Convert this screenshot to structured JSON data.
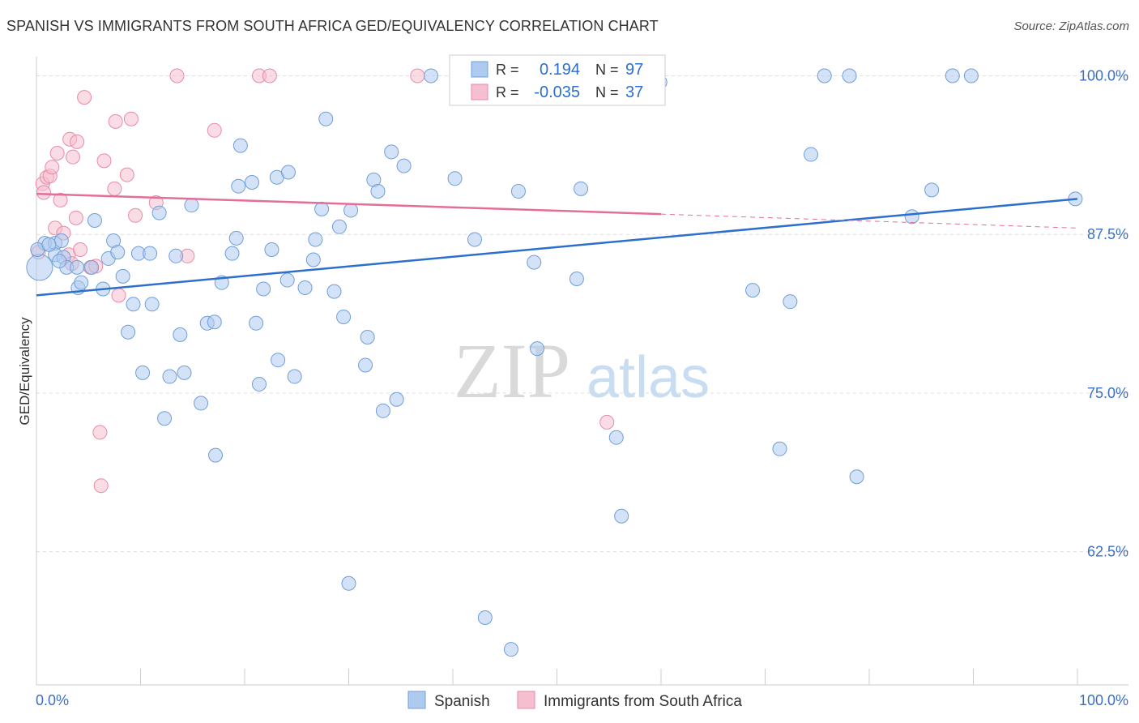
{
  "title": "SPANISH VS IMMIGRANTS FROM SOUTH AFRICA GED/EQUIVALENCY CORRELATION CHART",
  "source": "Source: ZipAtlas.com",
  "watermark": {
    "zip": "ZIP",
    "atlas": "atlas"
  },
  "colors": {
    "spanish_fill": "#aecbef",
    "spanish_stroke": "#6f9fd8",
    "spanish_line": "#2d6fcc",
    "sa_fill": "#f6bfd0",
    "sa_stroke": "#e88aaa",
    "sa_line": "#e36f98",
    "axis_text": "#3b6fc4",
    "grid": "#dddddd"
  },
  "legend_top": {
    "rows": [
      {
        "r_label": "R =",
        "r_value": "0.194",
        "n_label": "N =",
        "n_value": "97"
      },
      {
        "r_label": "R =",
        "r_value": "-0.035",
        "n_label": "N =",
        "n_value": "37"
      }
    ]
  },
  "legend_bottom": [
    "Spanish",
    "Immigrants from South Africa"
  ],
  "chart_data": {
    "type": "scatter",
    "title": "SPANISH VS IMMIGRANTS FROM SOUTH AFRICA GED/EQUIVALENCY CORRELATION CHART",
    "xlabel": "",
    "ylabel": "GED/Equivalency",
    "xlim": [
      0,
      100
    ],
    "ylim": [
      52,
      101.5
    ],
    "x_tick_labels": [
      "0.0%",
      "100.0%"
    ],
    "y_ticks": [
      62.5,
      75.0,
      87.5,
      100.0
    ],
    "y_tick_labels": [
      "62.5%",
      "75.0%",
      "87.5%",
      "100.0%"
    ],
    "grid": true,
    "series": [
      {
        "name": "Spanish",
        "trend": [
          [
            0,
            82.7
          ],
          [
            100,
            90.3
          ]
        ],
        "points": [
          [
            0.3,
            84.9
          ],
          [
            0.8,
            86.8
          ],
          [
            1.8,
            86.8
          ],
          [
            2.4,
            87.0
          ],
          [
            1.8,
            85.9
          ],
          [
            2.6,
            85.7
          ],
          [
            2.9,
            84.9
          ],
          [
            3.9,
            84.9
          ],
          [
            4.0,
            83.3
          ],
          [
            4.3,
            83.7
          ],
          [
            5.3,
            84.9
          ],
          [
            5.6,
            88.6
          ],
          [
            6.4,
            83.2
          ],
          [
            6.9,
            85.6
          ],
          [
            7.4,
            87.0
          ],
          [
            7.8,
            86.1
          ],
          [
            8.3,
            84.2
          ],
          [
            8.8,
            79.8
          ],
          [
            9.3,
            82.0
          ],
          [
            9.8,
            86.0
          ],
          [
            10.2,
            76.6
          ],
          [
            10.9,
            86.0
          ],
          [
            11.1,
            82.0
          ],
          [
            11.8,
            89.2
          ],
          [
            12.3,
            73.0
          ],
          [
            12.8,
            76.3
          ],
          [
            13.4,
            85.8
          ],
          [
            13.8,
            79.6
          ],
          [
            14.2,
            76.6
          ],
          [
            14.9,
            89.8
          ],
          [
            15.8,
            74.2
          ],
          [
            16.4,
            80.5
          ],
          [
            17.1,
            80.6
          ],
          [
            17.2,
            70.1
          ],
          [
            17.8,
            83.7
          ],
          [
            18.8,
            86.0
          ],
          [
            19.2,
            87.2
          ],
          [
            19.4,
            91.3
          ],
          [
            19.6,
            94.5
          ],
          [
            20.7,
            91.6
          ],
          [
            21.1,
            80.5
          ],
          [
            21.4,
            75.7
          ],
          [
            21.8,
            83.2
          ],
          [
            22.6,
            86.3
          ],
          [
            23.1,
            92.0
          ],
          [
            23.2,
            77.6
          ],
          [
            24.1,
            83.9
          ],
          [
            24.2,
            92.4
          ],
          [
            24.8,
            76.3
          ],
          [
            25.8,
            83.3
          ],
          [
            26.6,
            85.5
          ],
          [
            26.8,
            87.1
          ],
          [
            27.4,
            89.5
          ],
          [
            27.8,
            96.6
          ],
          [
            28.6,
            83.0
          ],
          [
            29.1,
            88.1
          ],
          [
            29.5,
            81.0
          ],
          [
            30.0,
            60.0
          ],
          [
            30.2,
            89.4
          ],
          [
            31.6,
            77.2
          ],
          [
            31.8,
            79.4
          ],
          [
            32.4,
            91.8
          ],
          [
            32.8,
            90.9
          ],
          [
            33.3,
            73.6
          ],
          [
            34.1,
            94.0
          ],
          [
            34.6,
            74.5
          ],
          [
            35.3,
            92.9
          ],
          [
            37.9,
            100.0
          ],
          [
            40.2,
            91.9
          ],
          [
            42.1,
            87.1
          ],
          [
            43.1,
            57.3
          ],
          [
            45.6,
            54.8
          ],
          [
            46.3,
            90.9
          ],
          [
            47.8,
            85.3
          ],
          [
            48.1,
            78.5
          ],
          [
            50.7,
            100.0
          ],
          [
            51.9,
            84.0
          ],
          [
            52.3,
            91.1
          ],
          [
            55.7,
            71.5
          ],
          [
            56.2,
            65.3
          ],
          [
            56.9,
            100.0
          ],
          [
            59.9,
            99.5
          ],
          [
            68.8,
            83.1
          ],
          [
            71.4,
            70.6
          ],
          [
            72.4,
            82.2
          ],
          [
            74.4,
            93.8
          ],
          [
            75.7,
            100.0
          ],
          [
            78.1,
            100.0
          ],
          [
            78.8,
            68.4
          ],
          [
            84.1,
            88.9
          ],
          [
            86.0,
            91.0
          ],
          [
            88.0,
            100.0
          ],
          [
            89.8,
            100.0
          ],
          [
            99.8,
            90.3
          ],
          [
            0.1,
            86.3
          ],
          [
            1.2,
            86.7
          ],
          [
            2.2,
            85.4
          ]
        ]
      },
      {
        "name": "Immigrants from South Africa",
        "trend": [
          [
            0,
            90.7
          ],
          [
            60,
            89.1
          ]
        ],
        "trend_dashed": [
          [
            60,
            89.1
          ],
          [
            100,
            88.0
          ]
        ],
        "points": [
          [
            0.2,
            86.1
          ],
          [
            0.6,
            91.5
          ],
          [
            0.7,
            90.8
          ],
          [
            1.0,
            92.0
          ],
          [
            1.3,
            92.1
          ],
          [
            1.5,
            92.8
          ],
          [
            1.8,
            88.0
          ],
          [
            2.0,
            93.9
          ],
          [
            2.3,
            90.2
          ],
          [
            2.6,
            87.6
          ],
          [
            3.1,
            85.9
          ],
          [
            3.2,
            95.0
          ],
          [
            3.4,
            85.2
          ],
          [
            3.5,
            93.6
          ],
          [
            3.8,
            88.8
          ],
          [
            3.9,
            94.8
          ],
          [
            4.2,
            86.3
          ],
          [
            4.6,
            98.3
          ],
          [
            5.2,
            84.9
          ],
          [
            5.7,
            85.0
          ],
          [
            6.1,
            71.9
          ],
          [
            6.2,
            67.7
          ],
          [
            6.5,
            93.3
          ],
          [
            7.5,
            91.1
          ],
          [
            7.6,
            96.4
          ],
          [
            7.9,
            82.7
          ],
          [
            8.7,
            92.2
          ],
          [
            9.1,
            96.6
          ],
          [
            9.5,
            89.0
          ],
          [
            11.5,
            90.0
          ],
          [
            14.5,
            85.8
          ],
          [
            17.1,
            95.7
          ],
          [
            21.4,
            100.0
          ],
          [
            22.4,
            100.0
          ],
          [
            36.6,
            100.0
          ],
          [
            54.8,
            72.7
          ],
          [
            13.5,
            100.0
          ]
        ]
      }
    ]
  }
}
